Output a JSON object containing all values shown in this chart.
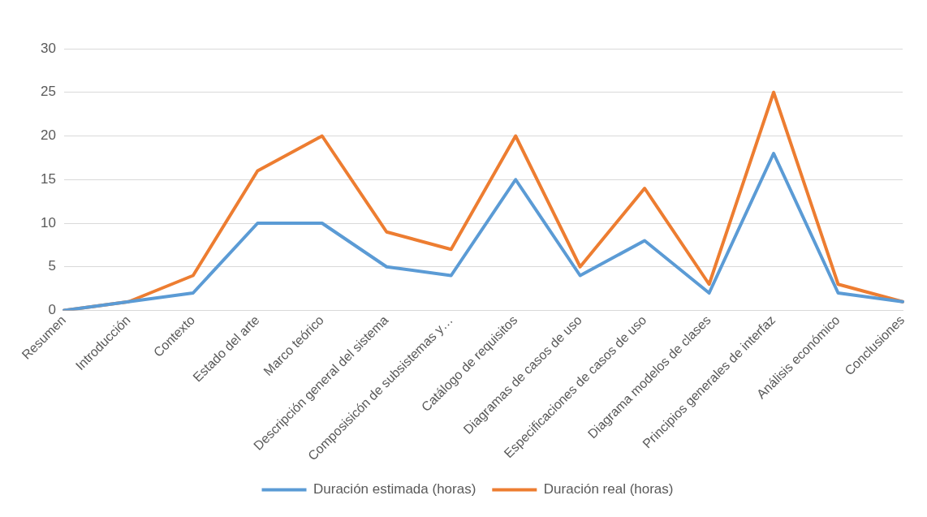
{
  "chart_data": {
    "type": "line",
    "categories": [
      "Resumen",
      "Introducción",
      "Contexto",
      "Estado del arte",
      "Marco teórico",
      "Descripción general del sistema",
      "Composisicón de subsistemas y…",
      "Catálogo de requisitos",
      "Diagramas de casos de uso",
      "Especificaciones de casos de uso",
      "Diagrama modelos de clases",
      "Principios generales de interfaz",
      "Análisis económico",
      "Conclusiones"
    ],
    "series": [
      {
        "name": "Duración estimada (horas)",
        "color": "#5b9bd5",
        "values": [
          0,
          1,
          2,
          10,
          10,
          5,
          4,
          15,
          4,
          8,
          2,
          18,
          2,
          1
        ]
      },
      {
        "name": "Duración real (horas)",
        "color": "#ed7d31",
        "values": [
          0,
          1,
          4,
          16,
          20,
          9,
          7,
          20,
          5,
          14,
          3,
          25,
          3,
          1
        ]
      }
    ],
    "ylim": [
      0,
      30
    ],
    "yticks": [
      0,
      5,
      10,
      15,
      20,
      25,
      30
    ],
    "grid": "y",
    "legend": "bottom",
    "marker": "none",
    "line_style": "solid"
  }
}
